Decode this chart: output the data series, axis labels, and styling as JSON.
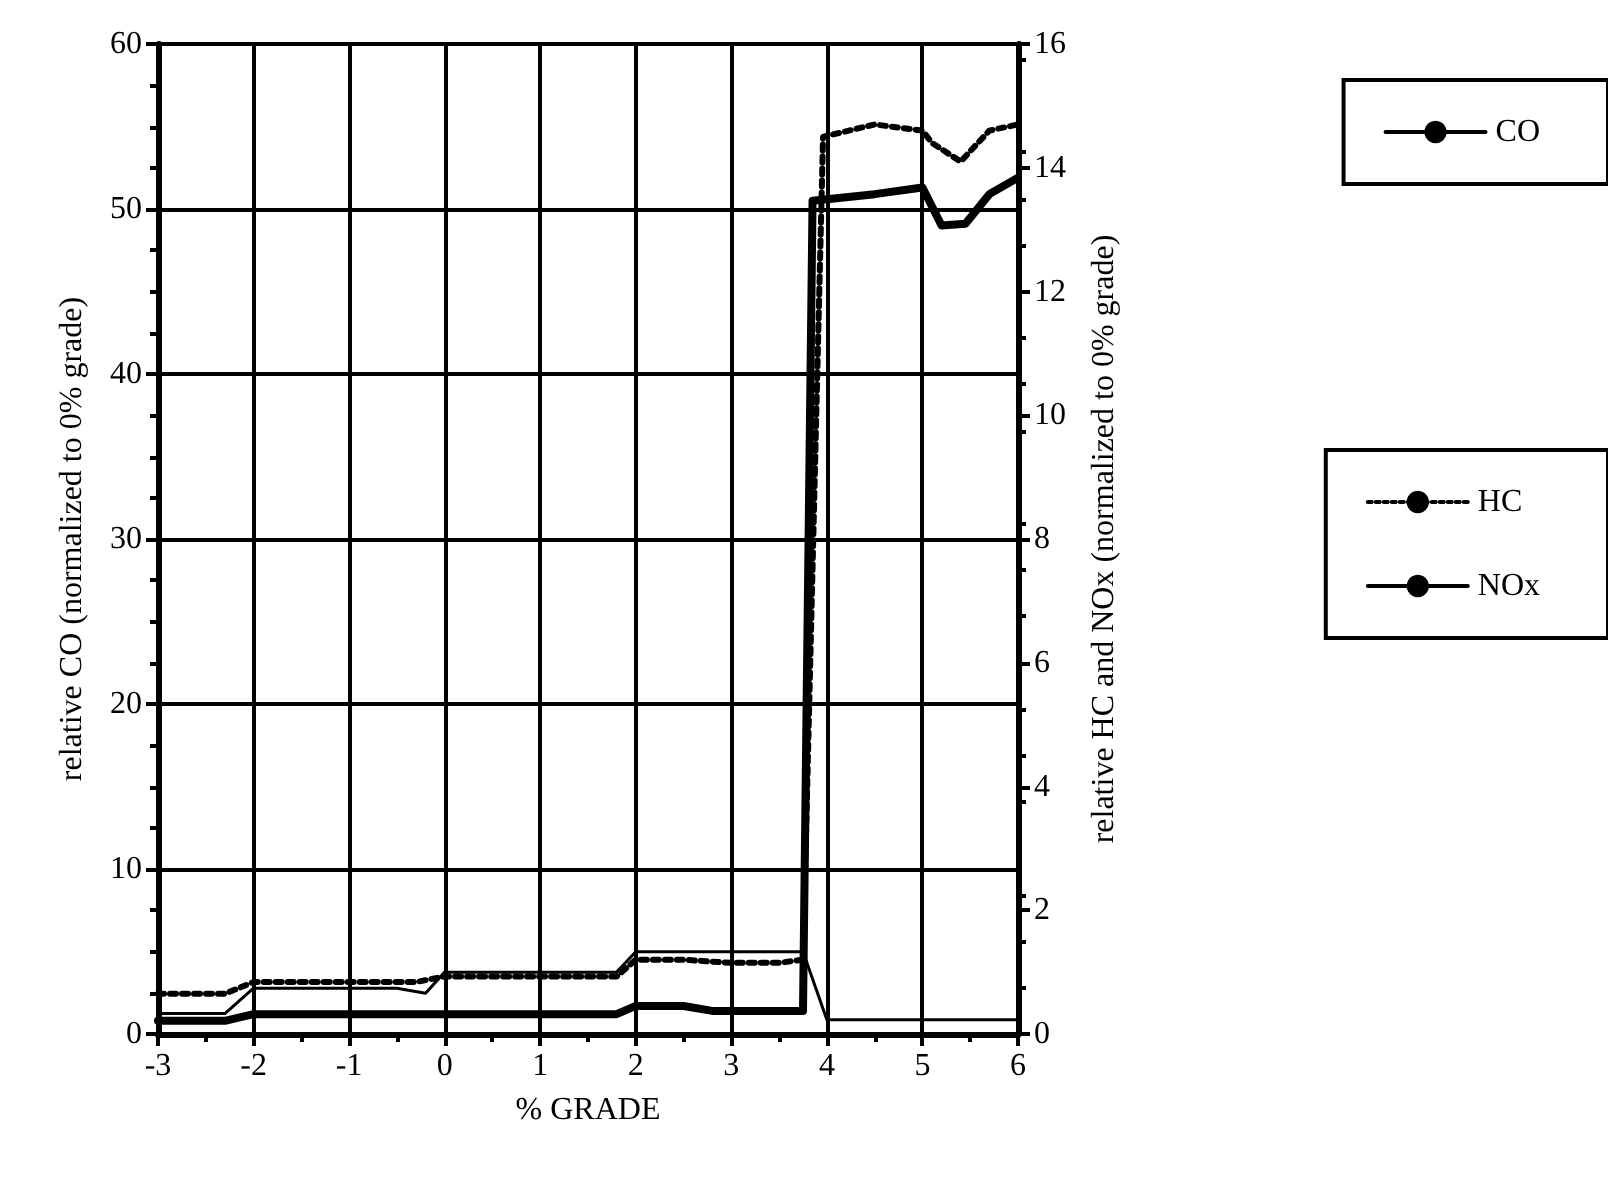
{
  "chart_data": {
    "type": "line",
    "xlabel": "% GRADE",
    "ylabel": "relative CO (normalized to 0% grade)",
    "y2label": "relative HC and NOx (normalized to 0% grade)",
    "xlim": [
      -3,
      6
    ],
    "xticks": [
      -3,
      -2,
      -1,
      0,
      1,
      2,
      3,
      4,
      5,
      6
    ],
    "ylim": [
      0,
      60
    ],
    "yticks": [
      0,
      10,
      20,
      30,
      40,
      50,
      60
    ],
    "y2lim": [
      0,
      16
    ],
    "y2ticks": [
      0,
      2,
      4,
      6,
      8,
      10,
      12,
      14,
      16
    ],
    "grid": true,
    "legend": "right",
    "marker": "none",
    "series": [
      {
        "name": "CO",
        "color": "#000000",
        "line_style": "solid",
        "x": [
          -3,
          -2.3,
          -2,
          -1,
          0,
          1,
          1.8,
          2,
          2.5,
          2.8,
          3.75,
          3.85,
          4.5,
          5,
          5.2,
          5.45,
          5.7,
          6
        ],
        "values": [
          0.8,
          0.8,
          1.2,
          1.2,
          1.2,
          1.2,
          1.2,
          1.7,
          1.7,
          1.4,
          1.4,
          50.5,
          50.9,
          51.3,
          49,
          49.1,
          50.9,
          51.9
        ]
      },
      {
        "name": "HC",
        "color": "#000000",
        "line_style": "dotted",
        "axis": "y2",
        "x": [
          -3,
          -2.3,
          -2,
          -1,
          -0.3,
          0,
          1,
          1.8,
          2,
          2.5,
          3,
          3.5,
          3.75,
          3.96,
          4.5,
          5,
          5.1,
          5.4,
          5.7,
          6
        ],
        "values": [
          0.65,
          0.65,
          0.84,
          0.84,
          0.84,
          0.93,
          0.93,
          0.93,
          1.2,
          1.2,
          1.15,
          1.15,
          1.2,
          14.5,
          14.7,
          14.6,
          14.4,
          14.1,
          14.6,
          14.7
        ]
      },
      {
        "name": "NOx",
        "color": "#000000",
        "line_style": "solid",
        "axis": "y2",
        "x": [
          -3,
          -2.3,
          -2,
          -1,
          -0.5,
          -0.2,
          0,
          1,
          1.8,
          2,
          3,
          3.75,
          4,
          5,
          6
        ],
        "values": [
          0.33,
          0.33,
          0.74,
          0.74,
          0.74,
          0.66,
          1,
          1,
          1,
          1.33,
          1.33,
          1.33,
          0.23,
          0.23,
          0.23
        ]
      }
    ]
  }
}
